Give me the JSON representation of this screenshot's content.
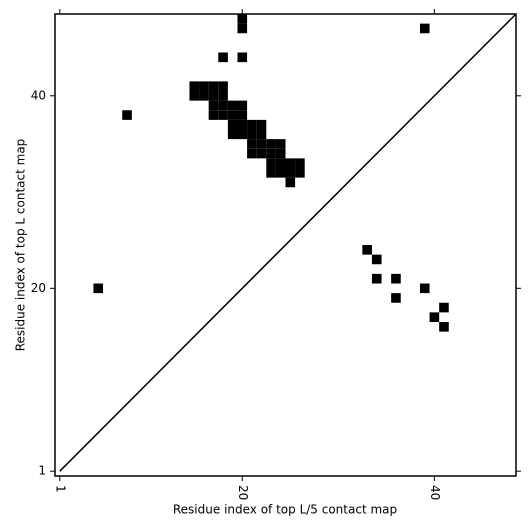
{
  "chart_data": {
    "type": "scatter",
    "marker": "square",
    "color": "#000000",
    "xlabel": "Residue index of top L/5 contact map",
    "ylabel": "Residue index of top L contact map",
    "x": [
      20,
      20,
      18,
      20,
      39,
      8,
      5,
      15,
      16,
      17,
      18,
      15,
      16,
      17,
      18,
      17,
      18,
      19,
      20,
      17,
      18,
      19,
      20,
      19,
      20,
      21,
      22,
      19,
      20,
      21,
      22,
      21,
      22,
      23,
      24,
      21,
      22,
      23,
      24,
      23,
      24,
      25,
      26,
      23,
      24,
      25,
      26,
      25,
      33,
      34,
      34,
      36,
      36,
      39,
      41,
      40,
      41
    ],
    "y": [
      48,
      47,
      44,
      44,
      47,
      38,
      20,
      41,
      41,
      41,
      41,
      40,
      40,
      40,
      40,
      39,
      39,
      39,
      39,
      38,
      38,
      38,
      38,
      37,
      37,
      37,
      37,
      36,
      36,
      36,
      36,
      35,
      35,
      35,
      35,
      34,
      34,
      34,
      34,
      33,
      33,
      33,
      33,
      32,
      32,
      32,
      32,
      31,
      24,
      23,
      21,
      21,
      19,
      20,
      18,
      17,
      16
    ],
    "xlim": [
      0.5,
      48.5
    ],
    "ylim": [
      0.5,
      48.5
    ],
    "xticks": [
      1,
      20,
      40
    ],
    "yticks": [
      1,
      20,
      40
    ],
    "diagonal": true
  }
}
